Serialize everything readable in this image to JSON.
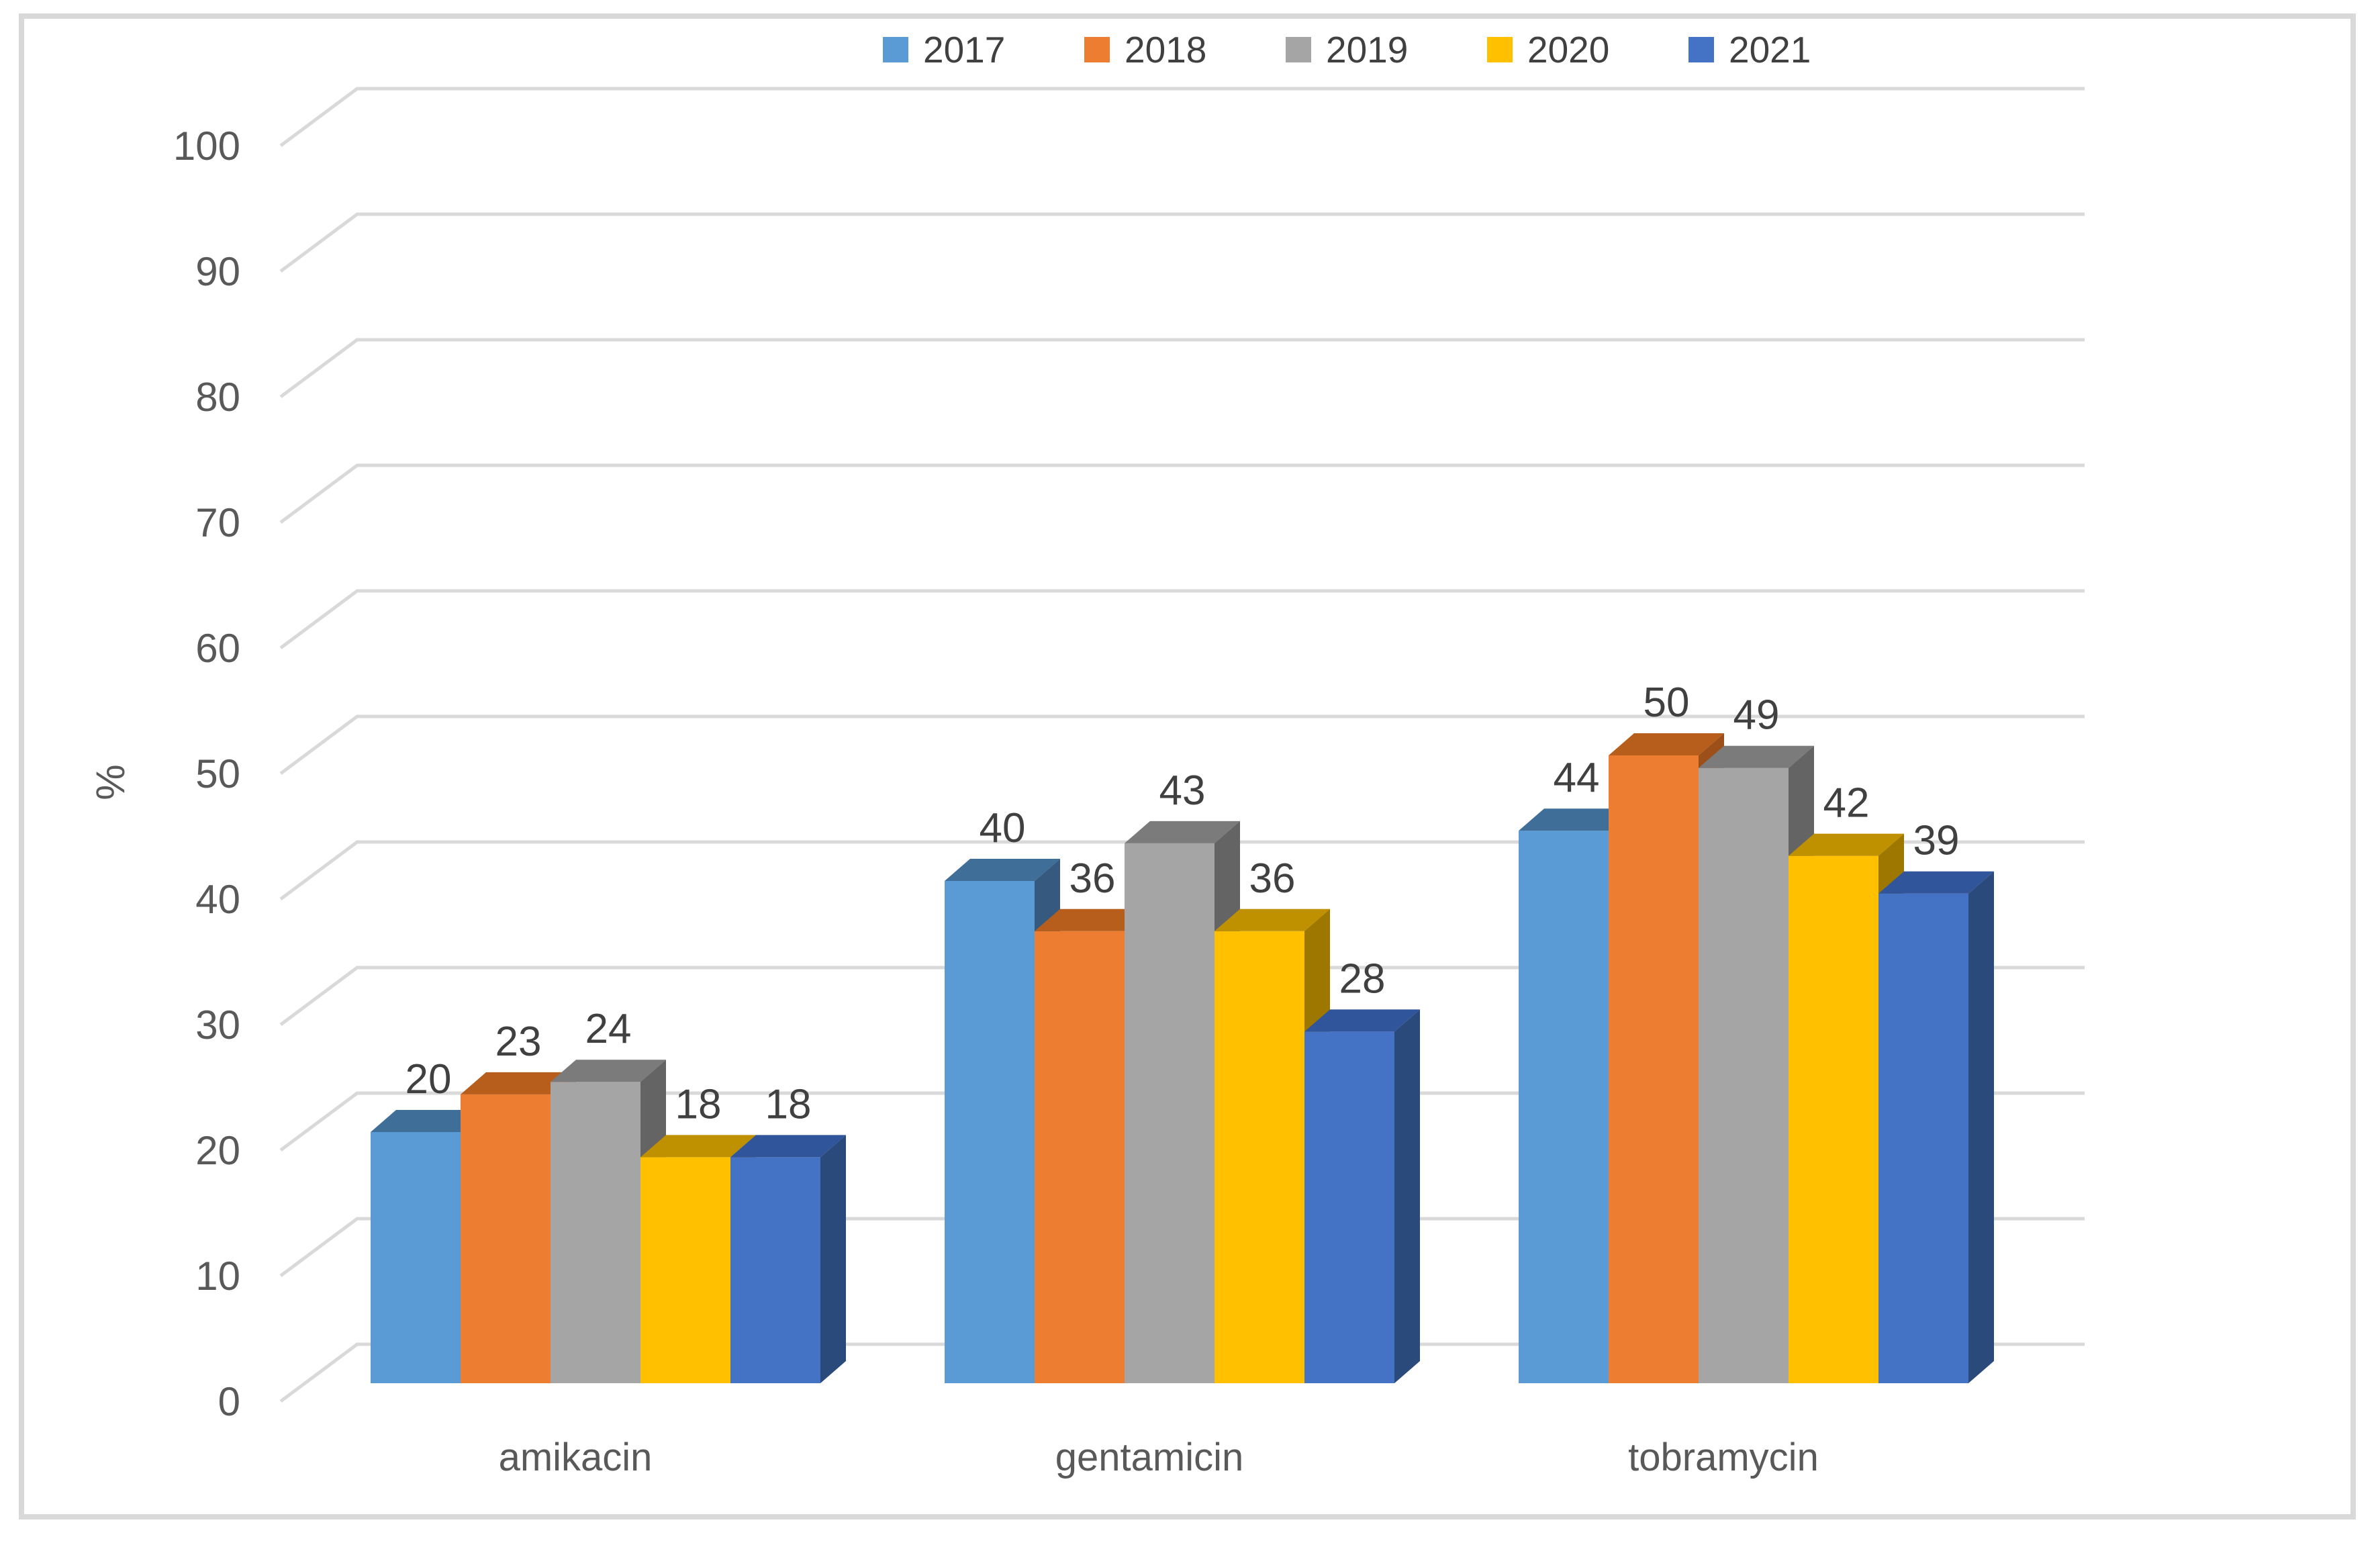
{
  "chart_data": {
    "type": "bar",
    "subtype": "3d-clustered-column",
    "title": "",
    "xlabel": "",
    "ylabel": "%",
    "ylim": [
      0,
      100
    ],
    "ytick_step": 10,
    "yticks": [
      0,
      10,
      20,
      30,
      40,
      50,
      60,
      70,
      80,
      90,
      100
    ],
    "ytick_labels": [
      "0",
      "10",
      "20",
      "30",
      "40",
      "50",
      "60",
      "70",
      "80",
      "90",
      "100"
    ],
    "categories": [
      "amikacin",
      "gentamicin",
      "tobramycin"
    ],
    "series": [
      {
        "name": "2017",
        "color": "#5B9BD5",
        "top_color": "#3F6E99",
        "side_color": "#35597F",
        "values": [
          20,
          40,
          44
        ]
      },
      {
        "name": "2018",
        "color": "#ED7D31",
        "top_color": "#B85E1C",
        "side_color": "#9C4F18",
        "values": [
          23,
          36,
          50
        ]
      },
      {
        "name": "2019",
        "color": "#A5A5A5",
        "top_color": "#7B7B7B",
        "side_color": "#646464",
        "values": [
          24,
          43,
          49
        ]
      },
      {
        "name": "2020",
        "color": "#FFC000",
        "top_color": "#BF9000",
        "side_color": "#9E7700",
        "values": [
          18,
          36,
          42
        ]
      },
      {
        "name": "2021",
        "color": "#4472C4",
        "top_color": "#30559B",
        "side_color": "#294A7B",
        "values": [
          18,
          28,
          39
        ]
      }
    ],
    "legend_position": "top",
    "grid": true,
    "data_labels": true
  },
  "colors": {
    "background": "#FFFFFF",
    "frame_border": "#D9D9D9",
    "gridline": "#D9D9D9",
    "axis_text": "#595959",
    "category_text": "#595959",
    "data_label_text": "#404040",
    "legend_text": "#404040"
  }
}
